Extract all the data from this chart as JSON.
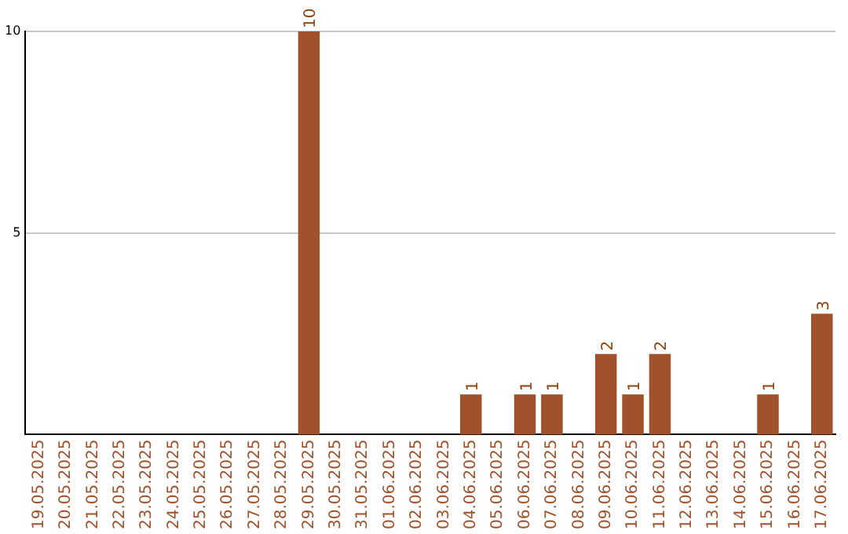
{
  "chart_data": {
    "type": "bar",
    "categories": [
      "19.05.2025",
      "20.05.2025",
      "21.05.2025",
      "22.05.2025",
      "23.05.2025",
      "24.05.2025",
      "25.05.2025",
      "26.05.2025",
      "27.05.2025",
      "28.05.2025",
      "29.05.2025",
      "30.05.2025",
      "31.05.2025",
      "01.06.2025",
      "02.06.2025",
      "03.06.2025",
      "04.06.2025",
      "05.06.2025",
      "06.06.2025",
      "07.06.2025",
      "08.06.2025",
      "09.06.2025",
      "10.06.2025",
      "11.06.2025",
      "12.06.2025",
      "13.06.2025",
      "14.06.2025",
      "15.06.2025",
      "16.06.2025",
      "17.06.2025"
    ],
    "values": [
      0,
      0,
      0,
      0,
      0,
      0,
      0,
      0,
      0,
      0,
      10,
      0,
      0,
      0,
      0,
      0,
      1,
      0,
      1,
      1,
      0,
      2,
      1,
      2,
      0,
      0,
      0,
      1,
      0,
      3
    ],
    "value_labels": [
      null,
      null,
      null,
      null,
      null,
      null,
      null,
      null,
      null,
      null,
      "10",
      null,
      null,
      null,
      null,
      null,
      "1",
      null,
      "1",
      "1",
      null,
      "2",
      "1",
      "2",
      null,
      null,
      null,
      "1",
      null,
      "3"
    ],
    "color": "#a0522d",
    "ylim": [
      0,
      10
    ],
    "yticks": [
      5,
      10
    ],
    "grid": "y"
  }
}
